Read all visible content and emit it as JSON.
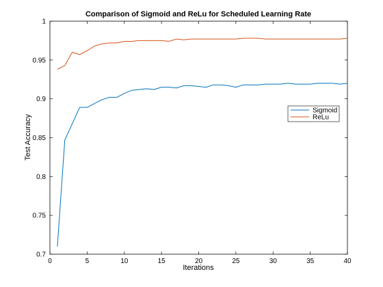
{
  "chart_data": {
    "type": "line",
    "title": "Comparison of Sigmoid and ReLu for Scheduled Learning Rate",
    "xlabel": "Iterations",
    "ylabel": "Test Accuracy",
    "xlim": [
      0,
      40
    ],
    "ylim": [
      0.7,
      1.0
    ],
    "xticks": [
      0,
      5,
      10,
      15,
      20,
      25,
      30,
      35,
      40
    ],
    "yticks": [
      0.7,
      0.75,
      0.8,
      0.85,
      0.9,
      0.95,
      1
    ],
    "xtick_labels": [
      "0",
      "5",
      "10",
      "15",
      "20",
      "25",
      "30",
      "35",
      "40"
    ],
    "ytick_labels": [
      "0.7",
      "0.75",
      "0.8",
      "0.85",
      "0.9",
      "0.95",
      "1"
    ],
    "grid": false,
    "legend_position": "right",
    "x": [
      1,
      2,
      3,
      4,
      5,
      6,
      7,
      8,
      9,
      10,
      11,
      12,
      13,
      14,
      15,
      16,
      17,
      18,
      19,
      20,
      21,
      22,
      23,
      24,
      25,
      26,
      27,
      28,
      29,
      30,
      31,
      32,
      33,
      34,
      35,
      36,
      37,
      38,
      39,
      40
    ],
    "series": [
      {
        "name": "Sigmoid",
        "color": "#0072bd",
        "values": [
          0.71,
          0.847,
          0.868,
          0.889,
          0.889,
          0.894,
          0.899,
          0.902,
          0.902,
          0.907,
          0.911,
          0.912,
          0.913,
          0.912,
          0.915,
          0.915,
          0.914,
          0.917,
          0.917,
          0.916,
          0.915,
          0.918,
          0.918,
          0.917,
          0.915,
          0.918,
          0.918,
          0.918,
          0.919,
          0.919,
          0.919,
          0.92,
          0.919,
          0.919,
          0.919,
          0.92,
          0.92,
          0.92,
          0.919,
          0.92
        ]
      },
      {
        "name": "ReLu",
        "color": "#d95319",
        "values": [
          0.938,
          0.943,
          0.96,
          0.957,
          0.962,
          0.968,
          0.971,
          0.972,
          0.972,
          0.974,
          0.974,
          0.975,
          0.975,
          0.975,
          0.975,
          0.974,
          0.977,
          0.976,
          0.977,
          0.977,
          0.977,
          0.977,
          0.977,
          0.977,
          0.977,
          0.978,
          0.978,
          0.978,
          0.977,
          0.977,
          0.977,
          0.977,
          0.977,
          0.977,
          0.977,
          0.977,
          0.977,
          0.977,
          0.977,
          0.978
        ]
      }
    ]
  }
}
